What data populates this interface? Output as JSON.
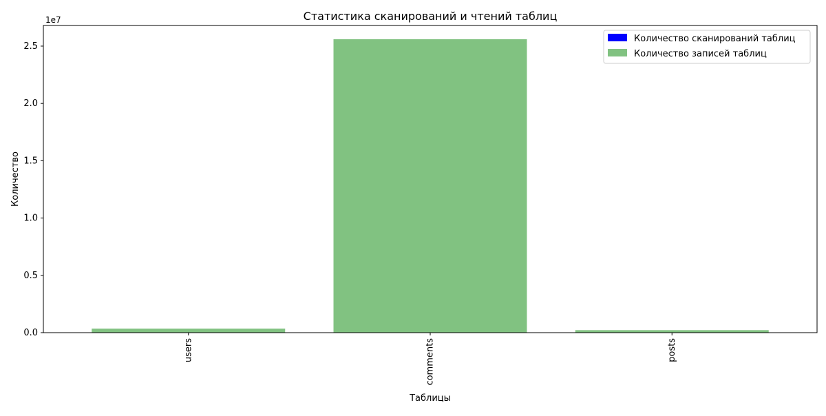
{
  "chart_data": {
    "type": "bar",
    "title": "Статистика сканирований и чтений таблиц",
    "xlabel": "Таблицы",
    "ylabel": "Количество",
    "y_offset_text": "1e7",
    "categories": [
      "users",
      "comments",
      "posts"
    ],
    "series": [
      {
        "name": "Количество сканирований таблиц",
        "color": "#0000ff",
        "values": [
          0,
          0,
          0
        ]
      },
      {
        "name": "Количество записей таблиц",
        "color": "#81c281",
        "values": [
          350000,
          25600000,
          220000
        ]
      }
    ],
    "ylim": [
      0,
      26800000
    ],
    "yticks": [
      0,
      5000000,
      10000000,
      15000000,
      20000000,
      25000000
    ],
    "ytick_labels": [
      "0.0",
      "0.5",
      "1.0",
      "1.5",
      "2.0",
      "2.5"
    ],
    "xtick_rotation": "vertical",
    "grid": false,
    "legend_position": "top-right"
  }
}
